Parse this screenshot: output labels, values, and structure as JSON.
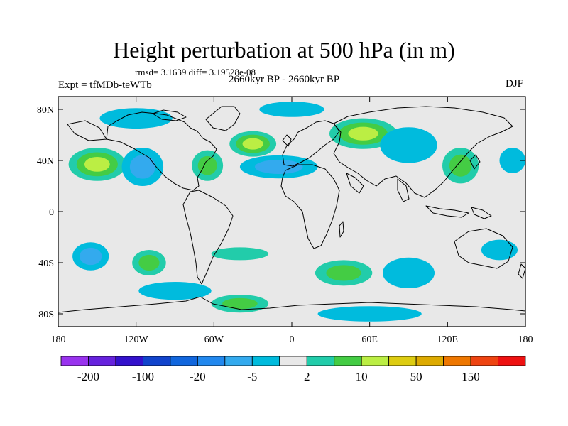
{
  "header": {
    "title": "Height perturbation at 500 hPa (in m)",
    "stats": "rmsd= 3.1639 diff= 3.19528e-08",
    "left_label": "Expt = tfMDb-teWTb",
    "center_label": "2660kyr BP - 2660kyr BP",
    "right_label": "DJF"
  },
  "map": {
    "projection": "cylindrical-equidistant",
    "lon_range": [
      -180,
      180
    ],
    "lat_range": [
      -90,
      90
    ],
    "lat_ticks": [
      {
        "value": 80,
        "label": "80N"
      },
      {
        "value": 40,
        "label": "40N"
      },
      {
        "value": 0,
        "label": "0"
      },
      {
        "value": -40,
        "label": "40S"
      },
      {
        "value": -80,
        "label": "80S"
      }
    ],
    "lon_ticks": [
      {
        "value": -180,
        "label": "180"
      },
      {
        "value": -120,
        "label": "120W"
      },
      {
        "value": -60,
        "label": "60W"
      },
      {
        "value": 0,
        "label": "0"
      },
      {
        "value": 60,
        "label": "60E"
      },
      {
        "value": 120,
        "label": "120E"
      },
      {
        "value": 180,
        "label": "180"
      }
    ],
    "background_color": "#e8e8e8",
    "anomaly_regions": [
      {
        "lon": -150,
        "lat": 37,
        "rlon": 22,
        "rlat": 13,
        "levels": [
          "#22ccaa",
          "#44cc44",
          "#bbee44"
        ]
      },
      {
        "lon": -115,
        "lat": 35,
        "rlon": 16,
        "rlat": 15,
        "levels": [
          "#00bbdd",
          "#33aaee"
        ]
      },
      {
        "lon": -65,
        "lat": 36,
        "rlon": 12,
        "rlat": 12,
        "levels": [
          "#22ccaa",
          "#44cc44"
        ]
      },
      {
        "lon": -30,
        "lat": 53,
        "rlon": 18,
        "rlat": 10,
        "levels": [
          "#22ccaa",
          "#44cc44",
          "#bbee44"
        ]
      },
      {
        "lon": -10,
        "lat": 35,
        "rlon": 30,
        "rlat": 9,
        "levels": [
          "#00bbdd",
          "#33aaee"
        ]
      },
      {
        "lon": 0,
        "lat": 80,
        "rlon": 25,
        "rlat": 6,
        "levels": [
          "#00bbdd"
        ]
      },
      {
        "lon": 55,
        "lat": 61,
        "rlon": 26,
        "rlat": 12,
        "levels": [
          "#22ccaa",
          "#44cc44",
          "#bbee44"
        ]
      },
      {
        "lon": 90,
        "lat": 52,
        "rlon": 22,
        "rlat": 14,
        "levels": [
          "#00bbdd"
        ]
      },
      {
        "lon": 130,
        "lat": 36,
        "rlon": 14,
        "rlat": 14,
        "levels": [
          "#22ccaa",
          "#44cc44"
        ]
      },
      {
        "lon": 170,
        "lat": 40,
        "rlon": 10,
        "rlat": 10,
        "levels": [
          "#00bbdd"
        ]
      },
      {
        "lon": -120,
        "lat": 73,
        "rlon": 28,
        "rlat": 8,
        "levels": [
          "#00bbdd"
        ]
      },
      {
        "lon": -155,
        "lat": -35,
        "rlon": 14,
        "rlat": 11,
        "levels": [
          "#00bbdd",
          "#33aaee"
        ]
      },
      {
        "lon": -110,
        "lat": -40,
        "rlon": 13,
        "rlat": 10,
        "levels": [
          "#22ccaa",
          "#44cc44"
        ]
      },
      {
        "lon": -40,
        "lat": -33,
        "rlon": 22,
        "rlat": 5,
        "levels": [
          "#22ccaa"
        ]
      },
      {
        "lon": 40,
        "lat": -48,
        "rlon": 22,
        "rlat": 10,
        "levels": [
          "#22ccaa",
          "#44cc44"
        ]
      },
      {
        "lon": 90,
        "lat": -48,
        "rlon": 20,
        "rlat": 12,
        "levels": [
          "#00bbdd"
        ]
      },
      {
        "lon": 160,
        "lat": -30,
        "rlon": 14,
        "rlat": 8,
        "levels": [
          "#00bbdd"
        ]
      },
      {
        "lon": -90,
        "lat": -62,
        "rlon": 28,
        "rlat": 7,
        "levels": [
          "#00bbdd"
        ]
      },
      {
        "lon": -40,
        "lat": -72,
        "rlon": 22,
        "rlat": 7,
        "levels": [
          "#22ccaa",
          "#44cc44"
        ]
      },
      {
        "lon": 60,
        "lat": -80,
        "rlon": 40,
        "rlat": 6,
        "levels": [
          "#00bbdd"
        ]
      }
    ]
  },
  "colorbar": {
    "colors": [
      "#9933ee",
      "#6622dd",
      "#3311cc",
      "#1144cc",
      "#1166dd",
      "#2288ee",
      "#33aaee",
      "#00bbdd",
      "#e8e8e8",
      "#22ccaa",
      "#44cc44",
      "#bbee44",
      "#ddcc11",
      "#ddaa00",
      "#ee7700",
      "#ee4411",
      "#ee1111"
    ],
    "labels": [
      {
        "after_box": 1,
        "text": "-200"
      },
      {
        "after_box": 3,
        "text": "-100"
      },
      {
        "after_box": 5,
        "text": "-20"
      },
      {
        "after_box": 7,
        "text": "-5"
      },
      {
        "after_box": 9,
        "text": "2"
      },
      {
        "after_box": 11,
        "text": "10"
      },
      {
        "after_box": 13,
        "text": "50"
      },
      {
        "after_box": 15,
        "text": "150"
      }
    ]
  }
}
